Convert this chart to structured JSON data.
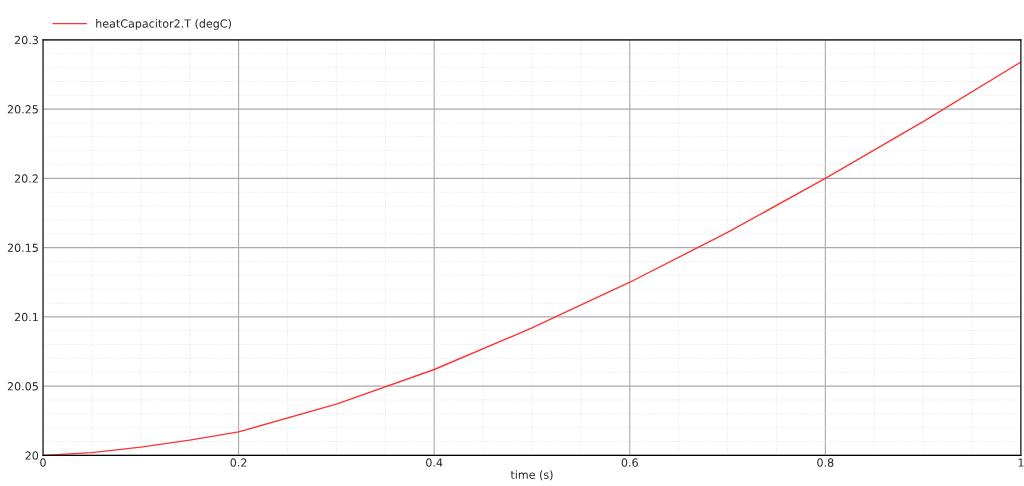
{
  "chart_data": {
    "type": "line",
    "xlabel": "time (s)",
    "x": [
      0,
      0.05,
      0.1,
      0.15,
      0.2,
      0.3,
      0.4,
      0.5,
      0.6,
      0.7,
      0.8,
      0.9,
      1.0
    ],
    "series": [
      {
        "name": "heatCapacitor2.T (degC)",
        "color": "#ff3333",
        "values": [
          20.0,
          20.002,
          20.006,
          20.011,
          20.017,
          20.037,
          20.062,
          20.092,
          20.125,
          20.161,
          20.2,
          20.241,
          20.284
        ]
      }
    ],
    "xlim": [
      0,
      1
    ],
    "xticks": [
      0,
      0.2,
      0.4,
      0.6,
      0.8,
      1
    ],
    "ylim": [
      20,
      20.3
    ],
    "yticks": [
      20,
      20.05,
      20.1,
      20.15,
      20.2,
      20.25,
      20.3
    ],
    "grid": true,
    "legend": "top left",
    "marker": "none",
    "line_style": "solid"
  }
}
